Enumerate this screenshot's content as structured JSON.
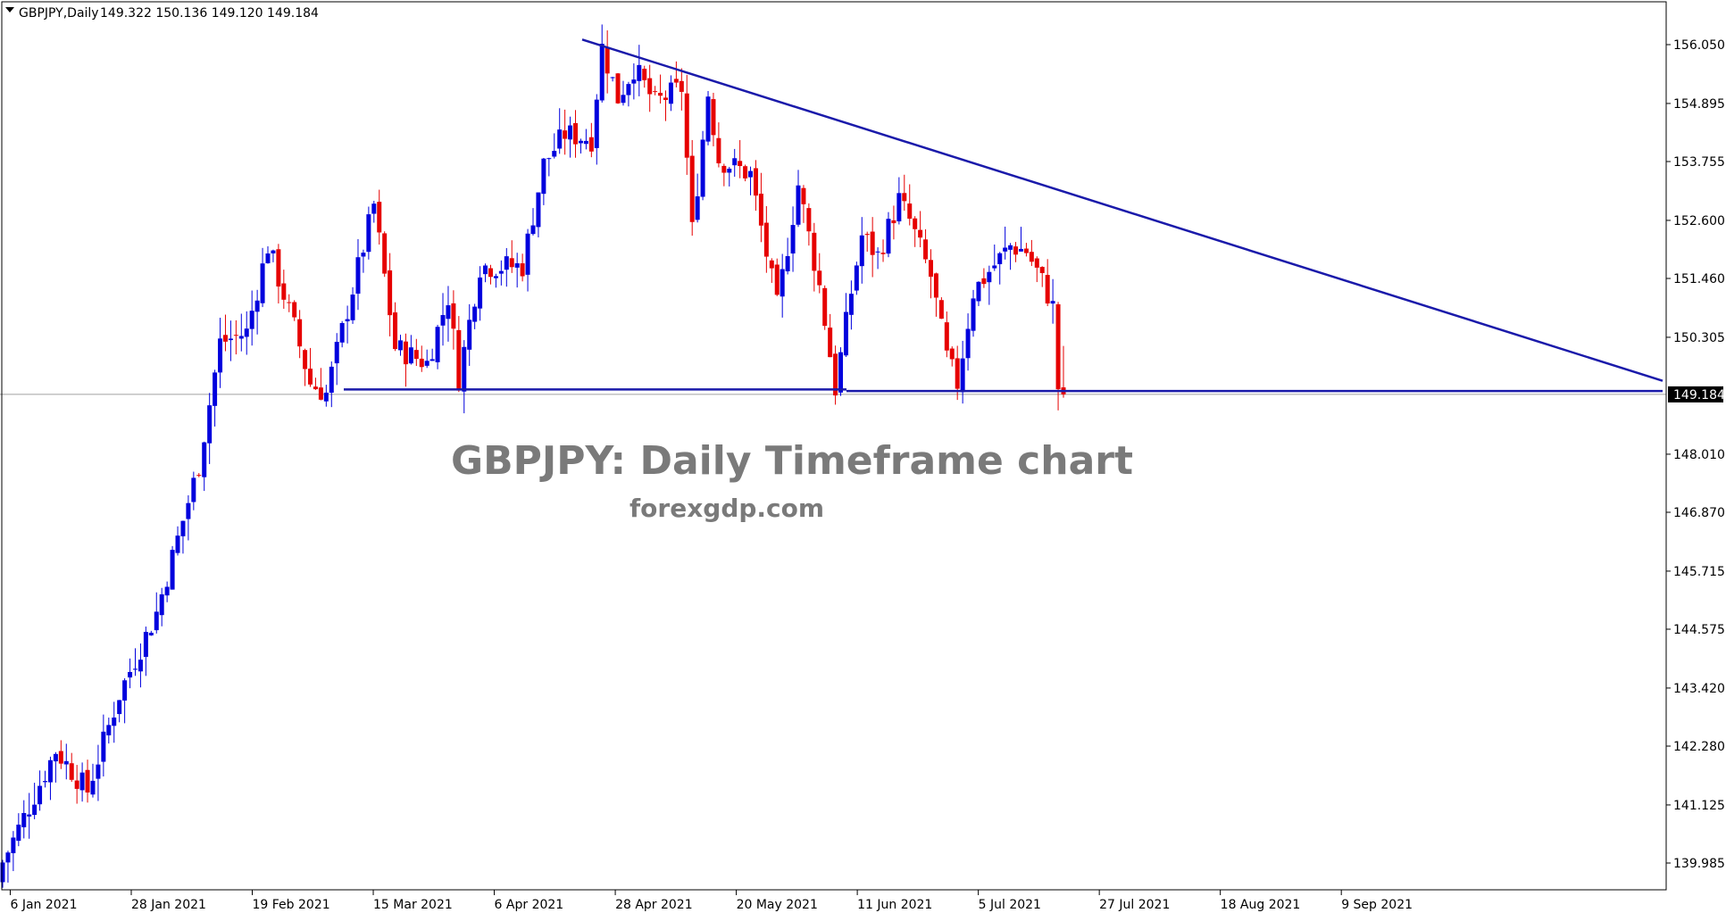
{
  "header": {
    "symbol": "GBPJPY,Daily",
    "ohlc": "149.322 150.136 149.120 149.184",
    "menu_icon": "triangle-down-icon"
  },
  "watermark": {
    "title": "GBPJPY: Daily Timeframe chart",
    "site": "forexgdp.com"
  },
  "colors": {
    "bull": "#0000dd",
    "bear": "#e60000",
    "trendline": "#1a1aaa",
    "price_line": "#a0a0a0",
    "current_price_bg": "#000000"
  },
  "chart_data": {
    "type": "candlestick",
    "symbol": "GBPJPY",
    "timeframe": "Daily",
    "y_ticks": [
      "156.050",
      "154.895",
      "153.755",
      "152.600",
      "151.460",
      "150.305",
      "149.184",
      "148.010",
      "146.870",
      "145.715",
      "144.575",
      "143.420",
      "142.280",
      "141.125",
      "139.985"
    ],
    "x_ticks": [
      "6 Jan 2021",
      "28 Jan 2021",
      "19 Feb 2021",
      "15 Mar 2021",
      "6 Apr 2021",
      "28 Apr 2021",
      "20 May 2021",
      "11 Jun 2021",
      "5 Jul 2021",
      "27 Jul 2021",
      "18 Aug 2021",
      "9 Sep 2021"
    ],
    "ylim": [
      139.5,
      156.8
    ],
    "current_price": 149.184,
    "last_ohlc": {
      "open": 149.322,
      "high": 150.136,
      "low": 149.12,
      "close": 149.184
    },
    "descending_trendline": {
      "from": {
        "date": "21 May 2021",
        "price": 156.15
      },
      "to": {
        "date": "14 Oct 2021",
        "price": 149.45
      }
    },
    "horizontal_support": [
      {
        "from_date": "29 Mar 2021",
        "to_date": "8 Jul 2021",
        "price": 149.28
      },
      {
        "from_date": "8 Jul 2021",
        "to_date": "14 Oct 2021",
        "price": 149.25
      }
    ],
    "candle_count": 189
  }
}
